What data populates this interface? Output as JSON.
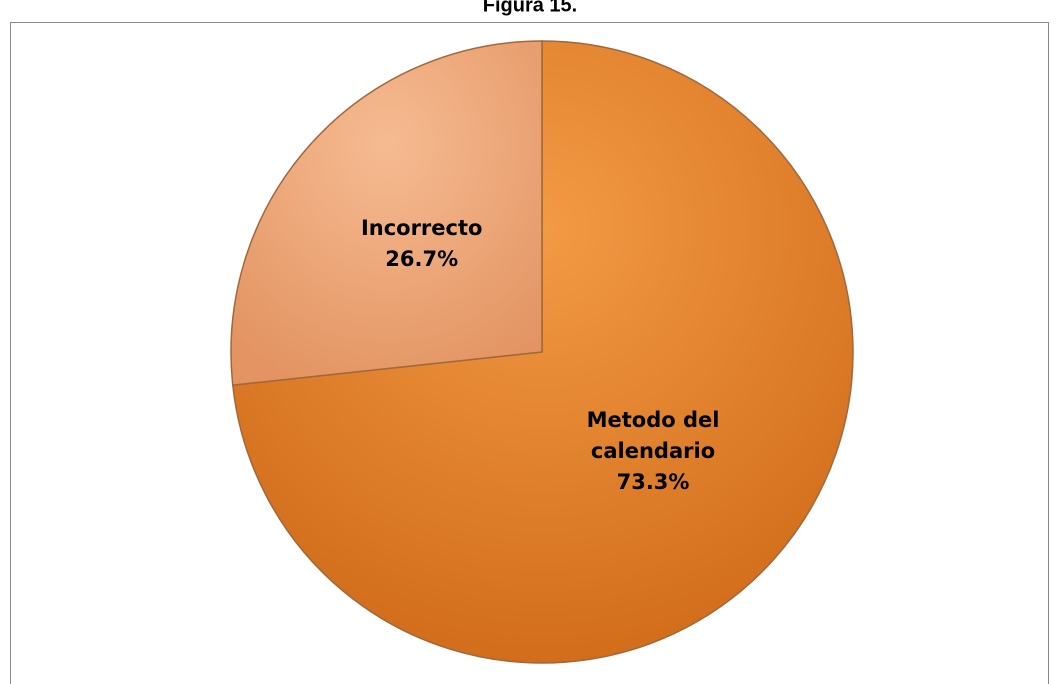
{
  "chart_data": {
    "type": "pie",
    "title": "Figura 15.",
    "categories": [
      "Metodo del calendario",
      "Incorrecto"
    ],
    "values": [
      73.3,
      26.7
    ],
    "value_labels": [
      "73.3%",
      "26.7%"
    ],
    "colors": [
      "#e9832c",
      "#f0a878"
    ]
  }
}
